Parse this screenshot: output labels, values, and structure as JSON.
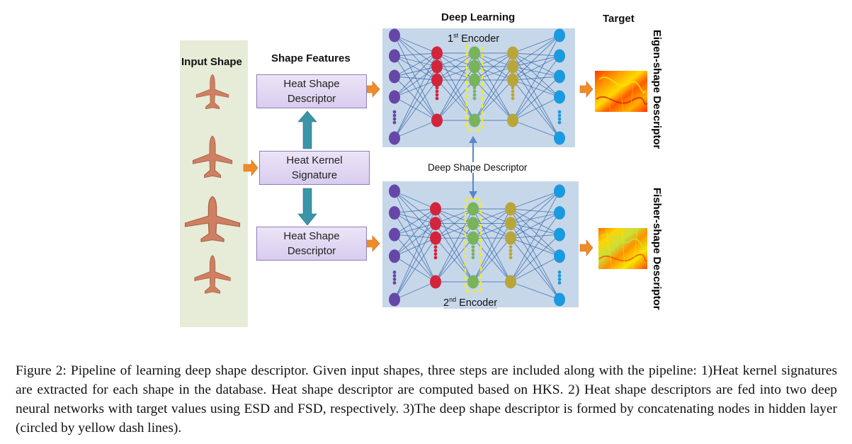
{
  "figure": {
    "headings": {
      "input_shape": "Input Shape",
      "shape_features": "Shape Features",
      "deep_learning": "Deep Learning",
      "target": "Target"
    },
    "boxes": {
      "top_descriptor": "Heat Shape Descriptor",
      "kernel_signature": "Heat Kernel Signature",
      "bottom_descriptor": "Heat Shape Descriptor"
    },
    "encoders": {
      "first": "1st Encoder",
      "second": "2nd Encoder"
    },
    "deep_shape_descriptor": "Deep Shape Descriptor",
    "targets": {
      "eigen": "Eigen-shape Descriptor",
      "fisher": "Fisher-shape Descriptor"
    },
    "colors": {
      "input_panel": "#e6ecd8",
      "box_fill": "#ddd1f0",
      "nn_background": "#c7d7ea",
      "arrow_orange": "#ef8c2a",
      "arrow_teal": "#3a95a8",
      "layer_purple": "#6647a8",
      "layer_red": "#d2253c",
      "layer_green": "#79b35a",
      "layer_olive": "#b9a63a",
      "layer_blue": "#1a9ae0",
      "dash_yellow": "#f2ee1c"
    },
    "icons": [
      "airplane-icon",
      "orange-arrow-icon",
      "teal-double-arrow-icon",
      "heatmap-image"
    ]
  },
  "caption": "Figure 2: Pipeline of learning deep shape descriptor. Given input shapes, three steps are included along with the pipeline: 1)Heat kernel signatures are extracted for each shape in the database. Heat shape descriptor are computed based on HKS. 2) Heat shape descriptors are fed into two deep neural networks with target values using ESD and FSD, respectively. 3)The deep shape descriptor is formed by concatenating nodes in hidden layer (circled by yellow dash lines)."
}
